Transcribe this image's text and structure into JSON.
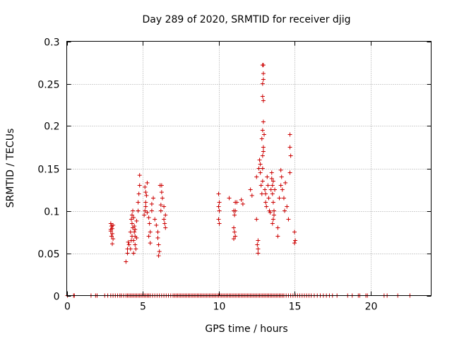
{
  "chart_data": {
    "type": "scatter",
    "title": "Day 289 of 2020, SRMTID for receiver djig",
    "xlabel": "GPS time / hours",
    "ylabel": "SRMTID / TECUs",
    "xlim": [
      0,
      24
    ],
    "ylim": [
      0,
      0.3
    ],
    "x_ticks": [
      0,
      5,
      10,
      15,
      20
    ],
    "y_ticks": [
      0,
      0.05,
      0.1,
      0.15,
      0.2,
      0.25,
      0.3
    ],
    "x_tick_labels": [
      "0",
      "5",
      "10",
      "15",
      "20"
    ],
    "y_tick_labels": [
      "0",
      "0.05",
      "0.1",
      "0.15",
      "0.2",
      "0.25",
      "0.3"
    ],
    "grid": true,
    "marker": "+",
    "color": "#cc0000",
    "series": [
      {
        "points": [
          [
            2.9,
            0.085
          ],
          [
            2.95,
            0.082
          ],
          [
            3.0,
            0.079
          ],
          [
            2.9,
            0.076
          ],
          [
            3.0,
            0.073
          ],
          [
            2.95,
            0.07
          ],
          [
            3.05,
            0.067
          ],
          [
            3.0,
            0.061
          ],
          [
            2.9,
            0.078
          ],
          [
            3.05,
            0.083
          ],
          [
            3.9,
            0.04
          ],
          [
            4.0,
            0.05
          ],
          [
            4.0,
            0.055
          ],
          [
            4.1,
            0.06
          ],
          [
            4.05,
            0.063
          ],
          [
            4.2,
            0.055
          ],
          [
            4.25,
            0.065
          ],
          [
            4.3,
            0.07
          ],
          [
            4.2,
            0.075
          ],
          [
            4.35,
            0.08
          ],
          [
            4.3,
            0.085
          ],
          [
            4.25,
            0.09
          ],
          [
            4.3,
            0.095
          ],
          [
            4.35,
            0.1
          ],
          [
            4.4,
            0.092
          ],
          [
            4.45,
            0.075
          ],
          [
            4.5,
            0.07
          ],
          [
            4.4,
            0.065
          ],
          [
            4.5,
            0.06
          ],
          [
            4.55,
            0.055
          ],
          [
            4.6,
            0.068
          ],
          [
            4.5,
            0.078
          ],
          [
            4.45,
            0.082
          ],
          [
            4.6,
            0.088
          ],
          [
            4.7,
            0.1
          ],
          [
            4.75,
            0.12
          ],
          [
            4.8,
            0.13
          ],
          [
            4.8,
            0.142
          ],
          [
            4.7,
            0.11
          ],
          [
            4.4,
            0.05
          ],
          [
            5.1,
            0.095
          ],
          [
            5.15,
            0.1
          ],
          [
            5.2,
            0.105
          ],
          [
            5.2,
            0.11
          ],
          [
            5.25,
            0.118
          ],
          [
            5.2,
            0.122
          ],
          [
            5.15,
            0.128
          ],
          [
            5.3,
            0.133
          ],
          [
            5.3,
            0.098
          ],
          [
            5.4,
            0.092
          ],
          [
            5.45,
            0.085
          ],
          [
            5.5,
            0.075
          ],
          [
            5.4,
            0.07
          ],
          [
            5.5,
            0.062
          ],
          [
            5.6,
            0.1
          ],
          [
            5.6,
            0.108
          ],
          [
            5.7,
            0.115
          ],
          [
            5.8,
            0.09
          ],
          [
            5.9,
            0.083
          ],
          [
            6.0,
            0.075
          ],
          [
            6.0,
            0.068
          ],
          [
            6.05,
            0.06
          ],
          [
            6.1,
            0.052
          ],
          [
            6.05,
            0.047
          ],
          [
            6.2,
            0.1
          ],
          [
            6.2,
            0.107
          ],
          [
            6.3,
            0.115
          ],
          [
            6.25,
            0.122
          ],
          [
            6.25,
            0.13
          ],
          [
            6.15,
            0.13
          ],
          [
            6.4,
            0.09
          ],
          [
            6.45,
            0.085
          ],
          [
            6.5,
            0.08
          ],
          [
            6.5,
            0.095
          ],
          [
            6.4,
            0.105
          ],
          [
            10.0,
            0.12
          ],
          [
            10.05,
            0.11
          ],
          [
            10.0,
            0.105
          ],
          [
            10.05,
            0.1
          ],
          [
            10.0,
            0.09
          ],
          [
            10.05,
            0.085
          ],
          [
            10.7,
            0.115
          ],
          [
            11.0,
            0.1
          ],
          [
            11.05,
            0.095
          ],
          [
            11.1,
            0.1
          ],
          [
            11.1,
            0.11
          ],
          [
            11.0,
            0.08
          ],
          [
            11.05,
            0.075
          ],
          [
            11.1,
            0.07
          ],
          [
            11.0,
            0.067
          ],
          [
            11.2,
            0.11
          ],
          [
            11.5,
            0.113
          ],
          [
            11.6,
            0.108
          ],
          [
            12.1,
            0.125
          ],
          [
            12.2,
            0.118
          ],
          [
            12.5,
            0.14
          ],
          [
            12.5,
            0.09
          ],
          [
            12.55,
            0.06
          ],
          [
            12.6,
            0.065
          ],
          [
            12.6,
            0.055
          ],
          [
            12.6,
            0.05
          ],
          [
            12.65,
            0.15
          ],
          [
            12.7,
            0.16
          ],
          [
            12.75,
            0.155
          ],
          [
            12.75,
            0.145
          ],
          [
            12.8,
            0.13
          ],
          [
            12.85,
            0.12
          ],
          [
            12.9,
            0.135
          ],
          [
            12.9,
            0.15
          ],
          [
            12.9,
            0.165
          ],
          [
            12.95,
            0.17
          ],
          [
            12.95,
            0.175
          ],
          [
            12.85,
            0.185
          ],
          [
            12.9,
            0.195
          ],
          [
            12.95,
            0.205
          ],
          [
            12.9,
            0.235
          ],
          [
            12.95,
            0.23
          ],
          [
            12.9,
            0.25
          ],
          [
            12.95,
            0.255
          ],
          [
            12.95,
            0.262
          ],
          [
            12.9,
            0.272
          ],
          [
            12.95,
            0.272
          ],
          [
            13.0,
            0.19
          ],
          [
            13.05,
            0.125
          ],
          [
            13.1,
            0.12
          ],
          [
            13.1,
            0.11
          ],
          [
            13.15,
            0.105
          ],
          [
            13.2,
            0.14
          ],
          [
            13.25,
            0.13
          ],
          [
            13.3,
            0.115
          ],
          [
            13.35,
            0.1
          ],
          [
            13.4,
            0.098
          ],
          [
            13.45,
            0.125
          ],
          [
            13.5,
            0.138
          ],
          [
            13.5,
            0.145
          ],
          [
            13.55,
            0.13
          ],
          [
            13.6,
            0.135
          ],
          [
            13.55,
            0.12
          ],
          [
            13.6,
            0.11
          ],
          [
            13.65,
            0.1
          ],
          [
            13.6,
            0.09
          ],
          [
            13.55,
            0.085
          ],
          [
            13.65,
            0.095
          ],
          [
            13.7,
            0.125
          ],
          [
            13.9,
            0.08
          ],
          [
            13.9,
            0.07
          ],
          [
            14.0,
            0.115
          ],
          [
            14.1,
            0.13
          ],
          [
            14.1,
            0.148
          ],
          [
            14.15,
            0.14
          ],
          [
            14.2,
            0.125
          ],
          [
            14.3,
            0.115
          ],
          [
            14.4,
            0.133
          ],
          [
            14.35,
            0.1
          ],
          [
            14.5,
            0.105
          ],
          [
            14.6,
            0.09
          ],
          [
            14.7,
            0.19
          ],
          [
            14.7,
            0.175
          ],
          [
            14.75,
            0.165
          ],
          [
            14.7,
            0.145
          ],
          [
            15.0,
            0.075
          ],
          [
            15.05,
            0.065
          ],
          [
            15.0,
            0.062
          ]
        ],
        "zero_x": [
          0.05,
          0.45,
          0.5,
          1.6,
          1.9,
          2.0,
          2.5,
          2.7,
          2.9,
          3.05,
          3.2,
          3.35,
          3.5,
          3.6,
          3.75,
          3.9,
          4.0,
          4.1,
          4.2,
          4.3,
          4.4,
          4.5,
          4.6,
          4.7,
          4.8,
          4.9,
          5.0,
          5.1,
          5.2,
          5.3,
          5.4,
          5.5,
          5.65,
          5.8,
          5.95,
          6.1,
          6.25,
          6.4,
          6.55,
          6.7,
          6.85,
          7.0,
          7.1,
          7.2,
          7.3,
          7.4,
          7.5,
          7.6,
          7.7,
          7.8,
          7.9,
          8.0,
          8.1,
          8.2,
          8.3,
          8.4,
          8.5,
          8.6,
          8.7,
          8.8,
          8.9,
          9.0,
          9.1,
          9.2,
          9.3,
          9.4,
          9.5,
          9.6,
          9.7,
          9.8,
          9.9,
          10.0,
          10.1,
          10.2,
          10.3,
          10.4,
          10.5,
          10.6,
          10.7,
          10.8,
          10.9,
          11.0,
          11.1,
          11.2,
          11.3,
          11.4,
          11.5,
          11.6,
          11.7,
          11.8,
          11.9,
          12.0,
          12.1,
          12.2,
          12.3,
          12.4,
          12.5,
          12.6,
          12.7,
          12.8,
          12.9,
          13.0,
          13.1,
          13.2,
          13.3,
          13.4,
          13.5,
          13.6,
          13.7,
          13.8,
          13.9,
          14.0,
          14.1,
          14.2,
          14.3,
          14.45,
          14.6,
          14.75,
          14.9,
          15.05,
          15.2,
          15.35,
          15.5,
          15.65,
          15.8,
          15.95,
          16.1,
          16.3,
          16.5,
          16.7,
          16.9,
          17.1,
          17.3,
          17.5,
          17.8,
          18.5,
          18.8,
          19.2,
          19.3,
          19.7,
          19.8,
          20.9,
          21.1,
          21.8,
          22.6
        ]
      }
    ]
  }
}
